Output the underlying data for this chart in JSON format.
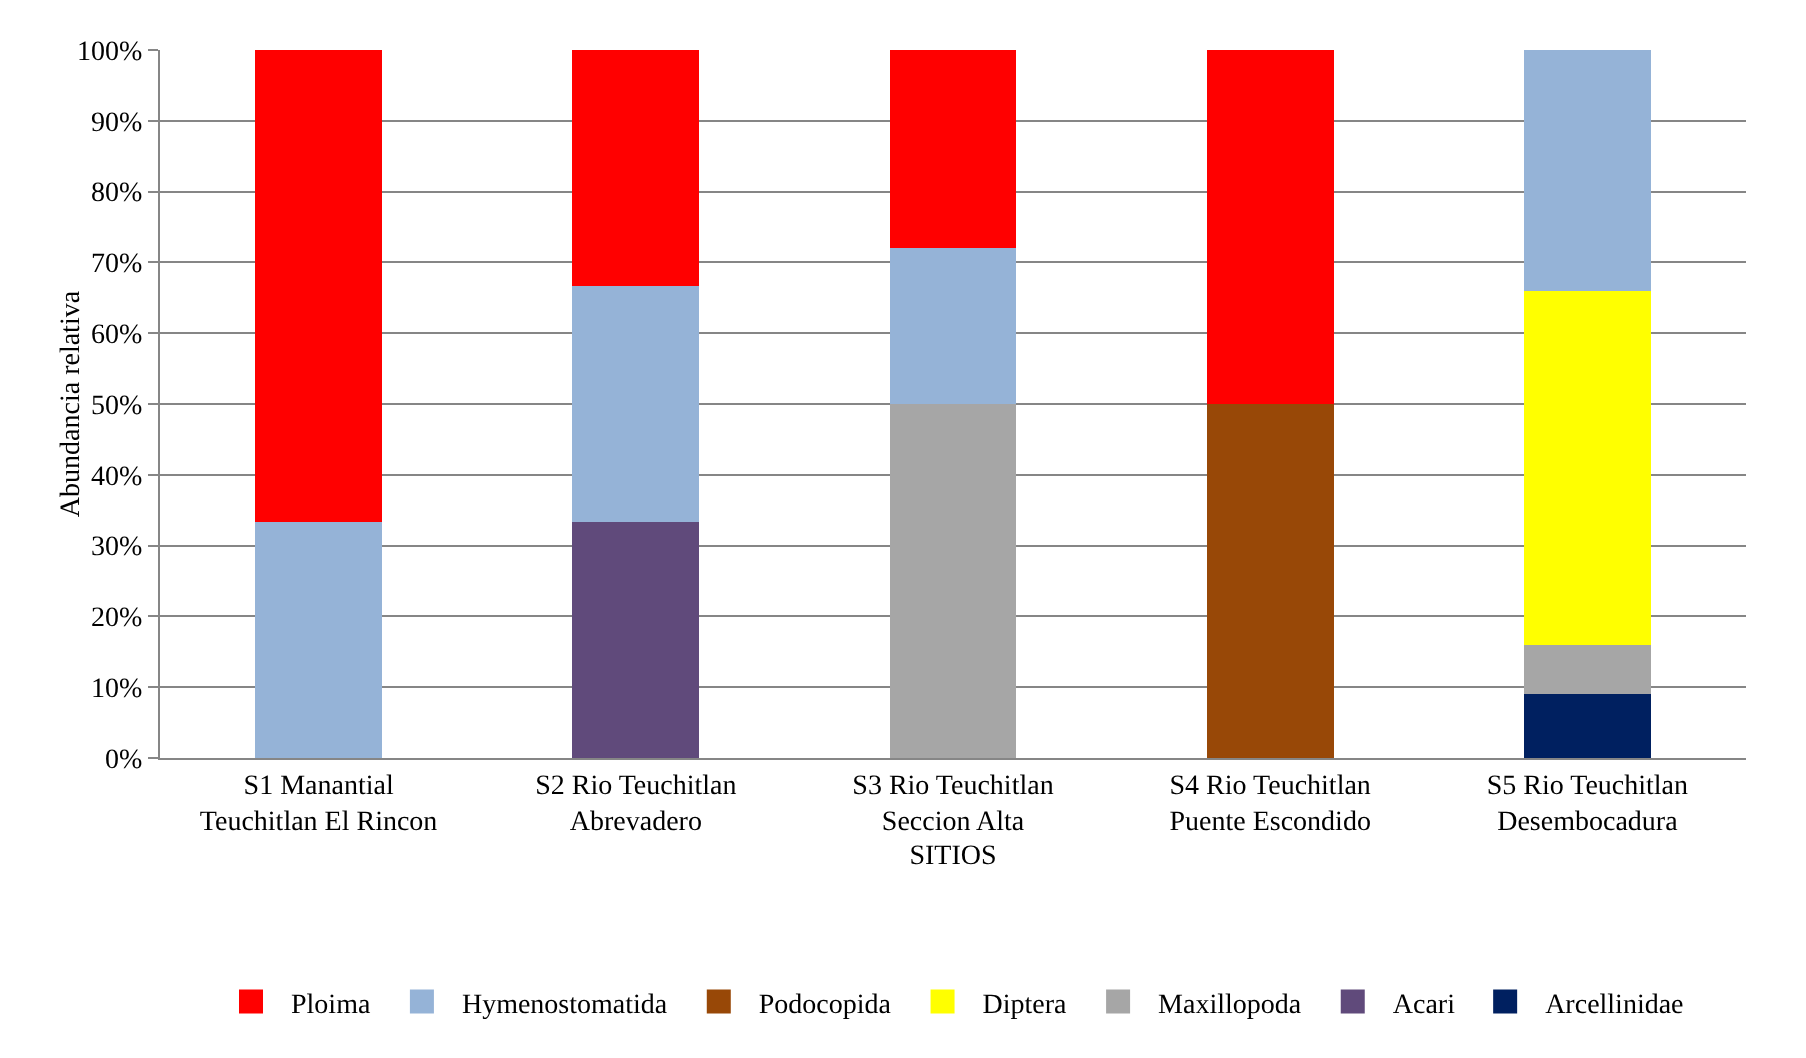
{
  "chart_data": {
    "type": "bar",
    "stacked": true,
    "xlabel": "SITIOS",
    "ylabel": "Abundancia relativa",
    "categories": [
      "S1 Manantial Teuchitlan El Rincon",
      "S2 Rio Teuchitlan Abrevadero",
      "S3 Rio Teuchitlan Seccion Alta",
      "S4 Rio Teuchitlan Puente Escondido",
      "S5 Rio Teuchitlan Desembocadura"
    ],
    "series": [
      {
        "name": "Arcellinidae",
        "color": "#002060",
        "values": [
          0,
          0,
          0,
          0,
          9
        ]
      },
      {
        "name": "Acari",
        "color": "#604a7b",
        "values": [
          0,
          33.3,
          0,
          0,
          0
        ]
      },
      {
        "name": "Maxillopoda",
        "color": "#a6a6a6",
        "values": [
          0,
          0,
          50,
          0,
          7
        ]
      },
      {
        "name": "Diptera",
        "color": "#ffff00",
        "values": [
          0,
          0,
          0,
          0,
          50
        ]
      },
      {
        "name": "Podocopida",
        "color": "#984807",
        "values": [
          0,
          0,
          0,
          50,
          0
        ]
      },
      {
        "name": "Hymenostomatida",
        "color": "#95b3d7",
        "values": [
          33.3,
          33.3,
          22,
          0,
          34
        ]
      },
      {
        "name": "Ploima",
        "color": "#ff0000",
        "values": [
          66.7,
          33.4,
          28,
          50,
          0
        ]
      }
    ],
    "ylim": [
      0,
      100
    ],
    "yticks": [
      {
        "value": 0,
        "label": "0%"
      },
      {
        "value": 10,
        "label": "10%"
      },
      {
        "value": 20,
        "label": "20%"
      },
      {
        "value": 30,
        "label": "30%"
      },
      {
        "value": 40,
        "label": "40%"
      },
      {
        "value": 50,
        "label": "50%"
      },
      {
        "value": 60,
        "label": "60%"
      },
      {
        "value": 70,
        "label": "70%"
      },
      {
        "value": 80,
        "label": "80%"
      },
      {
        "value": 90,
        "label": "90%"
      },
      {
        "value": 100,
        "label": "100%"
      }
    ],
    "grid": "y",
    "legend": "bottom"
  }
}
